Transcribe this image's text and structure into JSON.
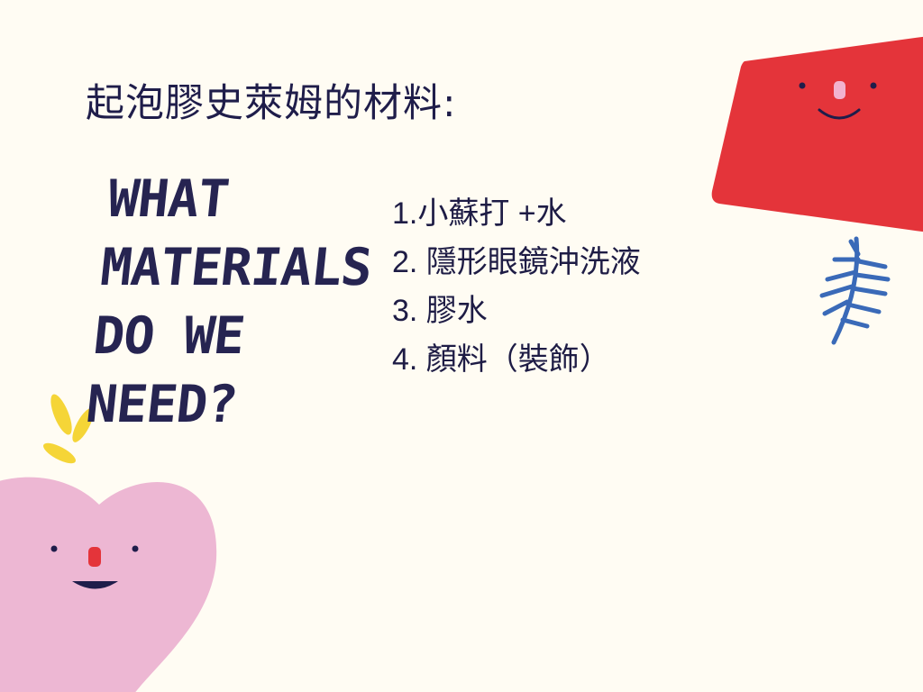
{
  "slide": {
    "title": "起泡膠史萊姆的材料:",
    "subtitle_lines": [
      "WHAT",
      "MATERIALS",
      "DO WE",
      "NEED?"
    ],
    "materials": [
      "1.小蘇打 +水",
      "2. 隱形眼鏡沖洗液",
      "3. 膠水",
      "4. 顏料（裝飾）"
    ]
  },
  "colors": {
    "background": "#FFFCF3",
    "text": "#1F1D4A",
    "red_shape": "#E4343A",
    "pink_heart": "#EDB7D3",
    "yellow_leaves": "#F5D537",
    "blue_leaf": "#3A6AB8"
  },
  "decorations": [
    "red-smiley-card",
    "blue-leaf-sprig",
    "yellow-leaves",
    "pink-smiley-heart"
  ]
}
